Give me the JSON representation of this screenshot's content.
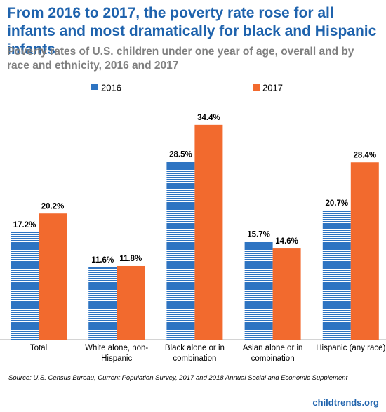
{
  "chart_data": {
    "type": "bar",
    "title": "From 2016 to 2017, the poverty rate rose for all infants and most dramatically for black and Hispanic infants",
    "subtitle": "Poverty rates of U.S. children under one year of age, overall and by race and ethnicity, 2016 and 2017",
    "categories": [
      "Total",
      "White alone, non-Hispanic",
      "Black alone or in combination",
      "Asian alone or in combination",
      "Hispanic (any race)"
    ],
    "series": [
      {
        "name": "2016",
        "color": "#2e74c2",
        "values": [
          17.2,
          11.6,
          28.5,
          15.7,
          20.7
        ],
        "value_labels": [
          "17.2%",
          "11.6%",
          "28.5%",
          "15.7%",
          "20.7%"
        ]
      },
      {
        "name": "2017",
        "color": "#f26a2e",
        "values": [
          20.2,
          11.8,
          34.4,
          14.6,
          28.4
        ],
        "value_labels": [
          "20.2%",
          "11.8%",
          "34.4%",
          "14.6%",
          "28.4%"
        ]
      }
    ],
    "source": "Source: U.S. Census Bureau, Current Population Survey, 2017 and 2018 Annual Social and Economic Supplement",
    "credit": "childtrends.org"
  }
}
